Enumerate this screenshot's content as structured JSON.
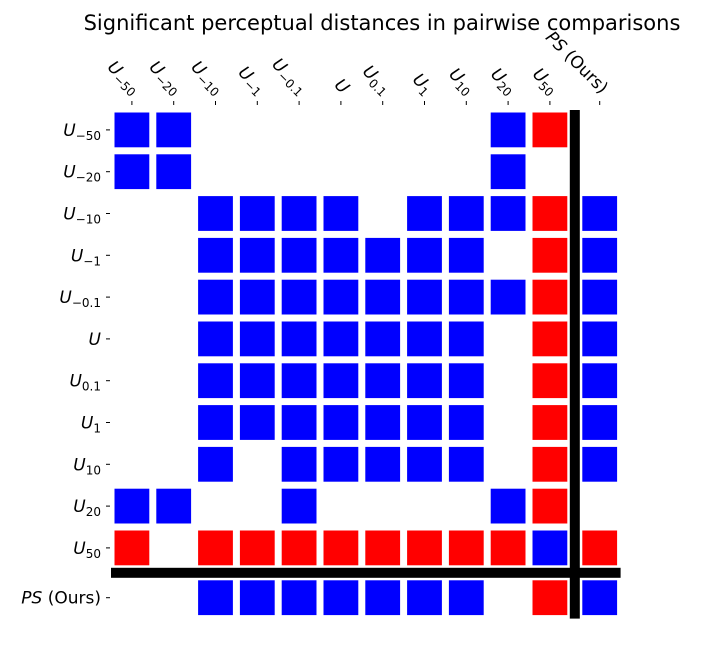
{
  "chart_data": {
    "type": "heatmap",
    "title": "Significant perceptual distances in pairwise comparisons",
    "row_labels": [
      {
        "base": "U",
        "sub": "−50",
        "suffix": ""
      },
      {
        "base": "U",
        "sub": "−20",
        "suffix": ""
      },
      {
        "base": "U",
        "sub": "−10",
        "suffix": ""
      },
      {
        "base": "U",
        "sub": "−1",
        "suffix": ""
      },
      {
        "base": "U",
        "sub": "−0.1",
        "suffix": ""
      },
      {
        "base": "U",
        "sub": "",
        "suffix": ""
      },
      {
        "base": "U",
        "sub": "0.1",
        "suffix": ""
      },
      {
        "base": "U",
        "sub": "1",
        "suffix": ""
      },
      {
        "base": "U",
        "sub": "10",
        "suffix": ""
      },
      {
        "base": "U",
        "sub": "20",
        "suffix": ""
      },
      {
        "base": "U",
        "sub": "50",
        "suffix": ""
      },
      {
        "base": "PS",
        "sub": "",
        "suffix": " (Ours)"
      }
    ],
    "col_labels": [
      {
        "base": "U",
        "sub": "−50",
        "suffix": ""
      },
      {
        "base": "U",
        "sub": "−20",
        "suffix": ""
      },
      {
        "base": "U",
        "sub": "−10",
        "suffix": ""
      },
      {
        "base": "U",
        "sub": "−1",
        "suffix": ""
      },
      {
        "base": "U",
        "sub": "−0.1",
        "suffix": ""
      },
      {
        "base": "U",
        "sub": "",
        "suffix": ""
      },
      {
        "base": "U",
        "sub": "0.1",
        "suffix": ""
      },
      {
        "base": "U",
        "sub": "1",
        "suffix": ""
      },
      {
        "base": "U",
        "sub": "10",
        "suffix": ""
      },
      {
        "base": "U",
        "sub": "20",
        "suffix": ""
      },
      {
        "base": "U",
        "sub": "50",
        "suffix": ""
      },
      {
        "base": "PS",
        "sub": "",
        "suffix": " (Ours)"
      }
    ],
    "colors": {
      "B": "#0000ff",
      "R": "#ff0000",
      "separator": "#000000"
    },
    "matrix": [
      [
        "B",
        "B",
        "",
        "",
        "",
        "",
        "",
        "",
        "",
        "B",
        "R",
        ""
      ],
      [
        "B",
        "B",
        "",
        "",
        "",
        "",
        "",
        "",
        "",
        "B",
        "",
        ""
      ],
      [
        "",
        "",
        "B",
        "B",
        "B",
        "B",
        "",
        "B",
        "B",
        "B",
        "R",
        "B"
      ],
      [
        "",
        "",
        "B",
        "B",
        "B",
        "B",
        "B",
        "B",
        "B",
        "",
        "R",
        "B"
      ],
      [
        "",
        "",
        "B",
        "B",
        "B",
        "B",
        "B",
        "B",
        "B",
        "B",
        "R",
        "B"
      ],
      [
        "",
        "",
        "B",
        "B",
        "B",
        "B",
        "B",
        "B",
        "B",
        "",
        "R",
        "B"
      ],
      [
        "",
        "",
        "B",
        "B",
        "B",
        "B",
        "B",
        "B",
        "B",
        "",
        "R",
        "B"
      ],
      [
        "",
        "",
        "B",
        "B",
        "B",
        "B",
        "B",
        "B",
        "B",
        "",
        "R",
        "B"
      ],
      [
        "",
        "",
        "B",
        "",
        "B",
        "B",
        "B",
        "B",
        "B",
        "",
        "R",
        "B"
      ],
      [
        "B",
        "B",
        "",
        "",
        "B",
        "",
        "",
        "",
        "",
        "B",
        "R",
        ""
      ],
      [
        "R",
        "",
        "R",
        "R",
        "R",
        "R",
        "R",
        "R",
        "R",
        "R",
        "B",
        "R"
      ],
      [
        "",
        "",
        "B",
        "B",
        "B",
        "B",
        "B",
        "B",
        "B",
        "",
        "R",
        "B"
      ]
    ],
    "separator_after_index": 10
  }
}
